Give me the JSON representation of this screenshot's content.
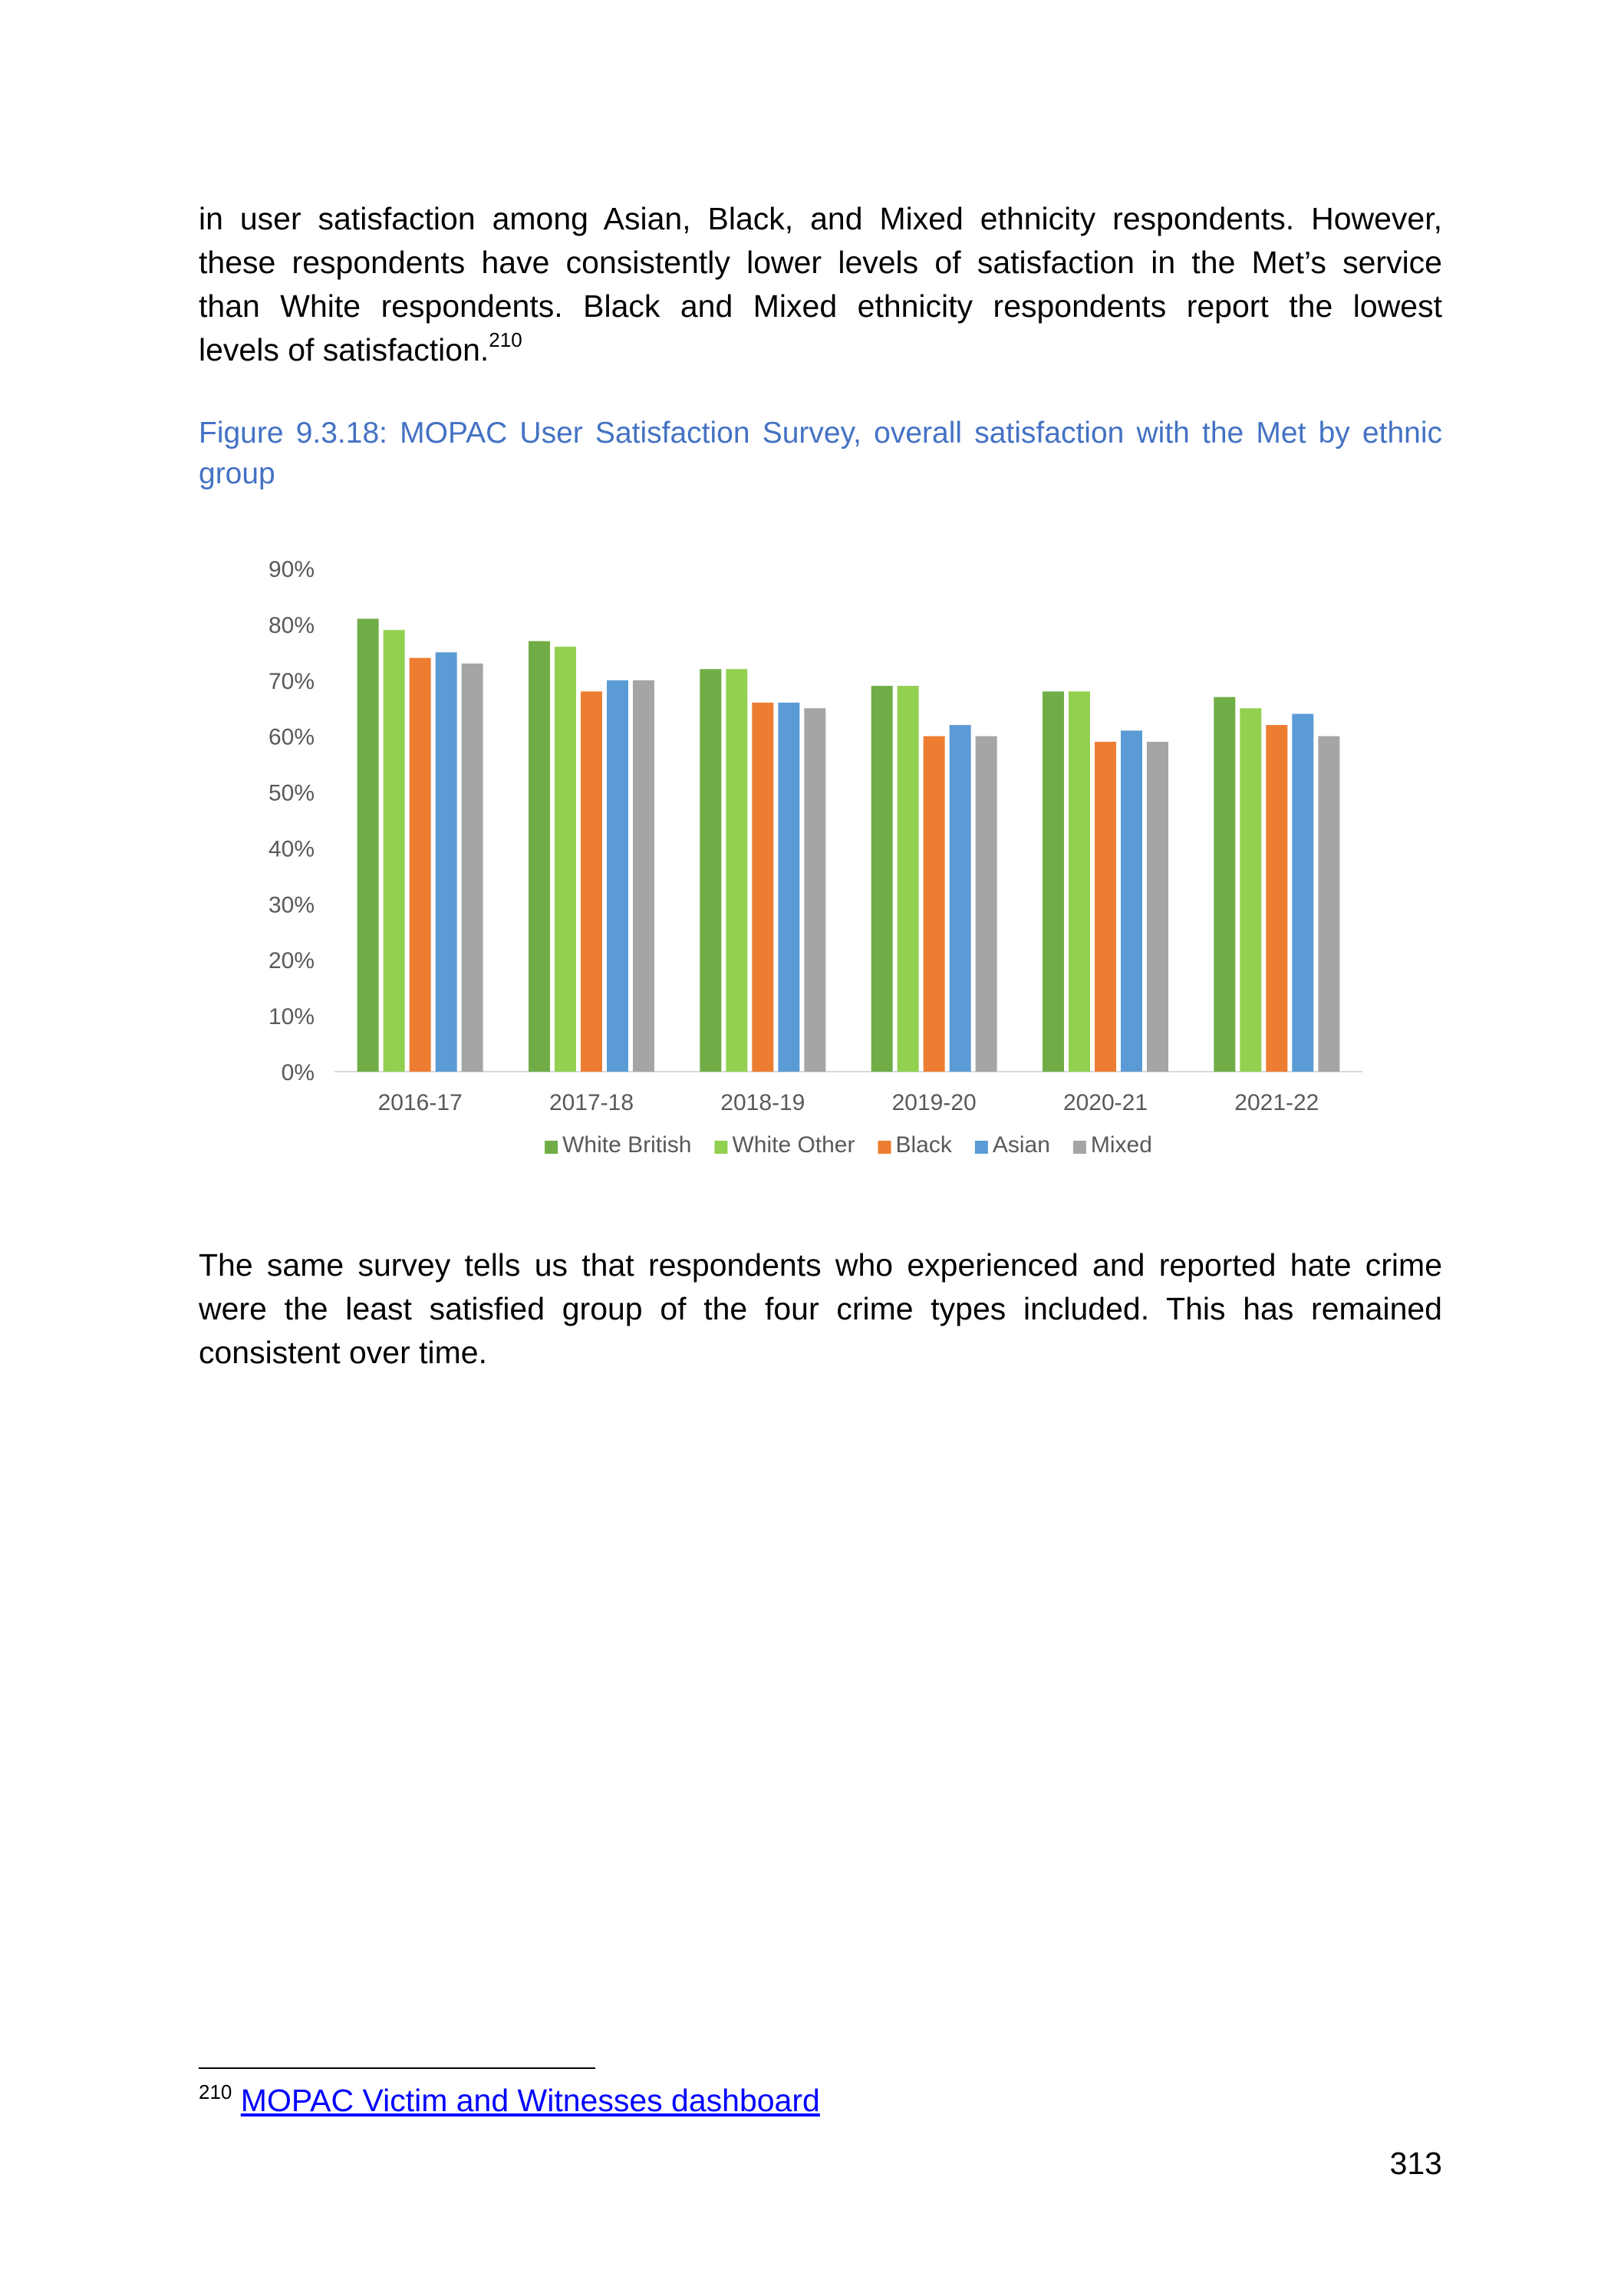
{
  "paragraph1": {
    "lines": [
      "in user satisfaction among Asian, Black, and Mixed ethnicity respondents. However,",
      "these respondents have consistently lower levels of satisfaction in the Met’s service",
      "than White respondents. Black and Mixed ethnicity respondents report the lowest",
      "levels of satisfaction."
    ],
    "footnote_ref": "210"
  },
  "figure_caption": {
    "lines": [
      "Figure 9.3.18: MOPAC User Satisfaction Survey, overall satisfaction with the Met by ethnic",
      "group"
    ]
  },
  "paragraph2": {
    "lines": [
      "The same survey tells us that respondents who experienced and reported hate crime",
      "were the least satisfied group of the four crime types included. This has remained",
      "consistent over time."
    ]
  },
  "footnote": {
    "number": "210",
    "link_text": "MOPAC Victim and Witnesses dashboard"
  },
  "page_number": "313",
  "chart_data": {
    "type": "bar",
    "categories": [
      "2016-17",
      "2017-18",
      "2018-19",
      "2019-20",
      "2020-21",
      "2021-22"
    ],
    "series": [
      {
        "name": "White British",
        "color": "#70ad47",
        "values": [
          81,
          77,
          72,
          69,
          68,
          67
        ]
      },
      {
        "name": "White Other",
        "color": "#92d050",
        "values": [
          79,
          76,
          72,
          69,
          68,
          65
        ]
      },
      {
        "name": "Black",
        "color": "#ed7d31",
        "values": [
          74,
          68,
          66,
          60,
          59,
          62
        ]
      },
      {
        "name": "Asian",
        "color": "#5b9bd5",
        "values": [
          75,
          70,
          66,
          62,
          61,
          64
        ]
      },
      {
        "name": "Mixed",
        "color": "#a5a5a5",
        "values": [
          73,
          70,
          65,
          60,
          59,
          60
        ]
      }
    ],
    "y_ticks": [
      "0%",
      "10%",
      "20%",
      "30%",
      "40%",
      "50%",
      "60%",
      "70%",
      "80%",
      "90%"
    ],
    "ylim": [
      0,
      90
    ],
    "grid": false,
    "legend": "bottom",
    "title": "",
    "xlabel": "",
    "ylabel": ""
  }
}
